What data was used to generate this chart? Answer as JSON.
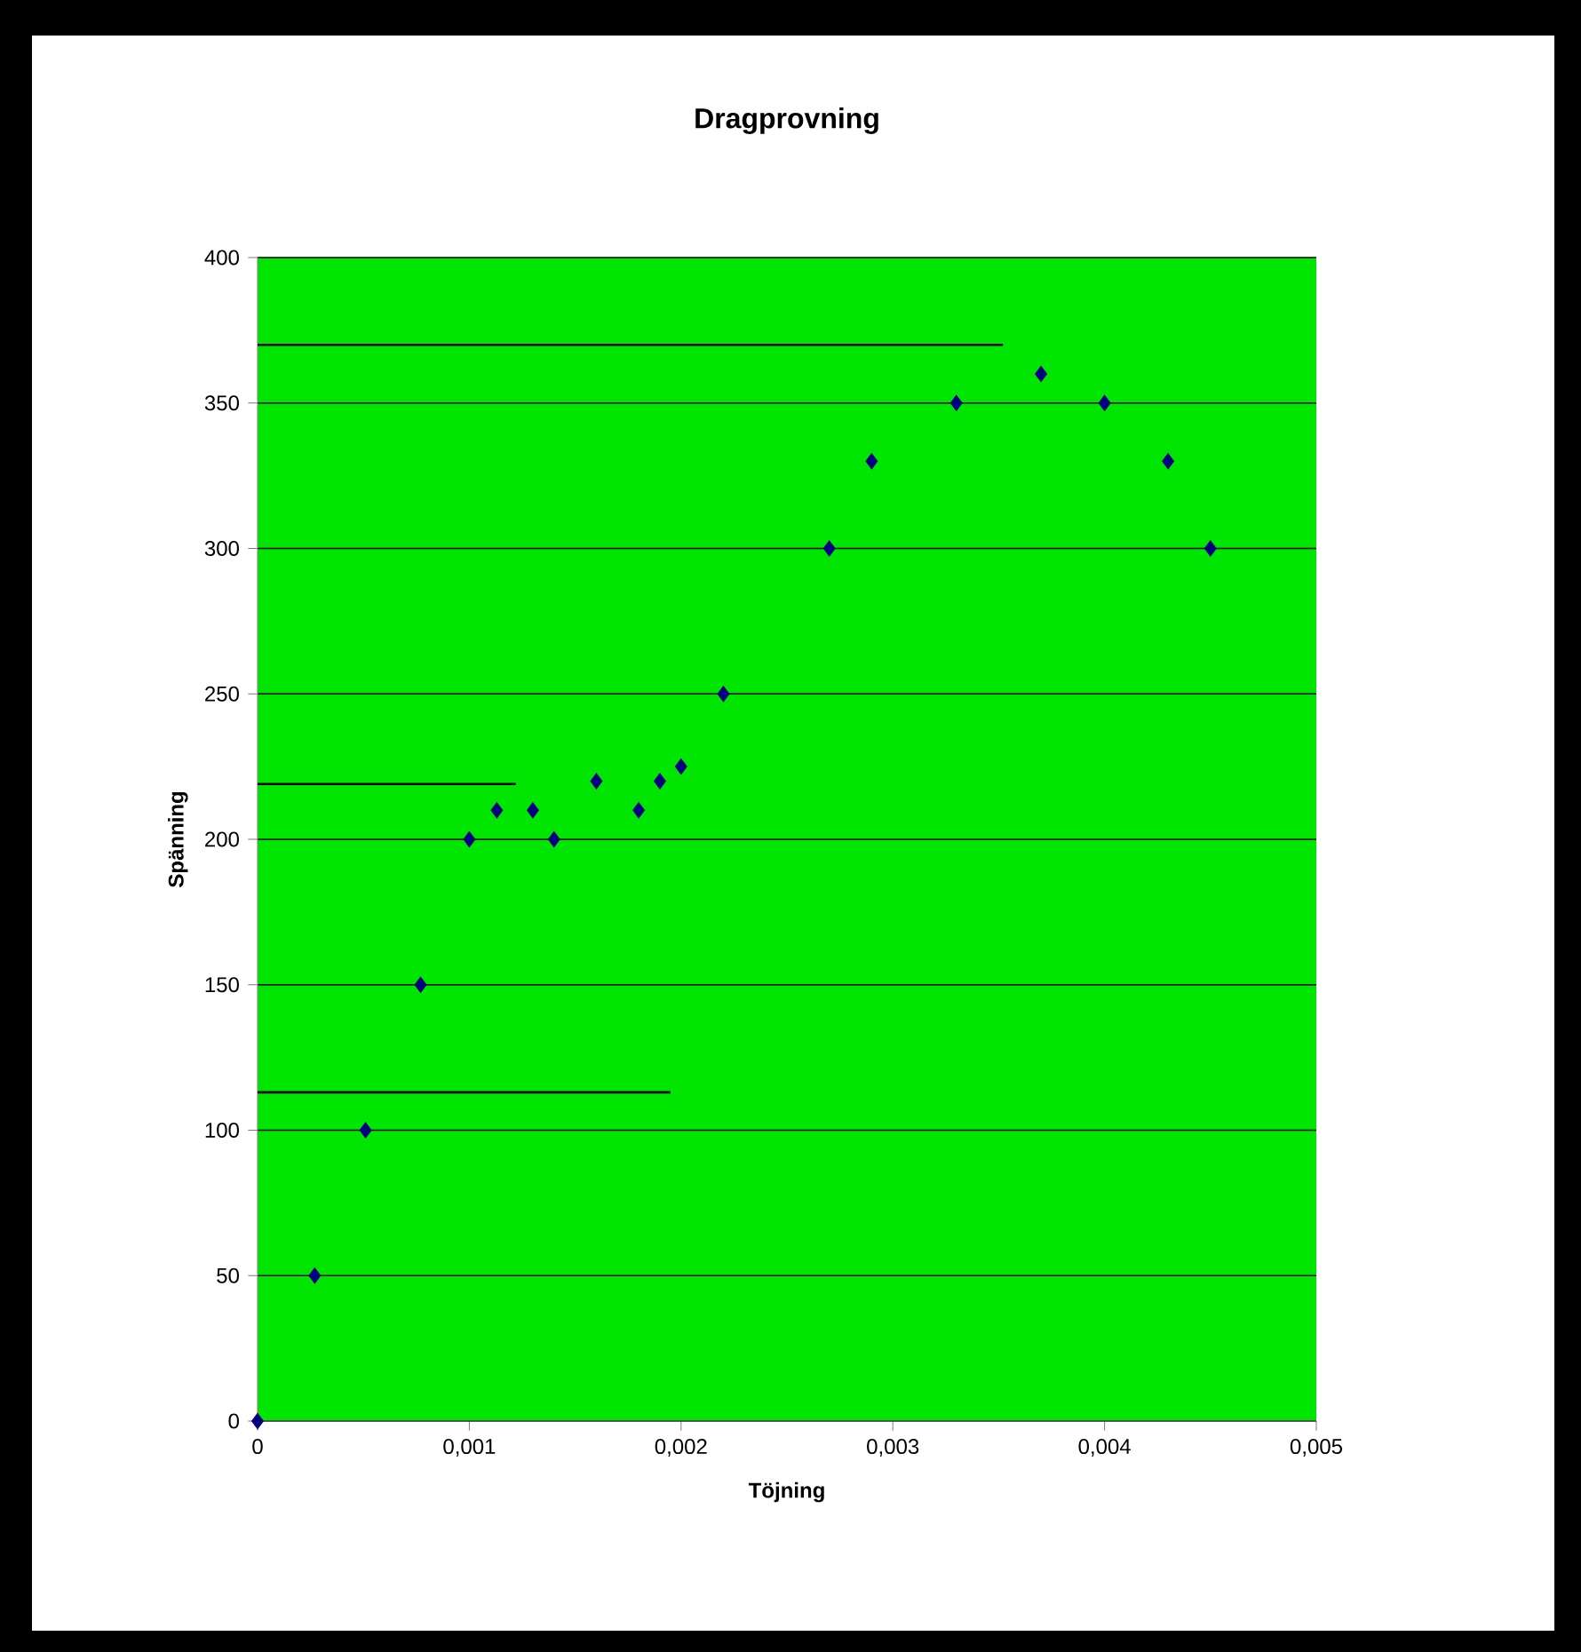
{
  "chart_data": {
    "type": "scatter",
    "title": "Dragprovning",
    "xlabel": "Töjning",
    "ylabel": "Spänning",
    "xlim": [
      0,
      0.005
    ],
    "ylim": [
      0,
      400
    ],
    "xticks": [
      0,
      {
        "value": 0.001,
        "label": "0,001"
      },
      {
        "value": 0.002,
        "label": "0,002"
      },
      {
        "value": 0.003,
        "label": "0,003"
      },
      {
        "value": 0.004,
        "label": "0,004"
      },
      {
        "value": 0.005,
        "label": "0,005"
      }
    ],
    "yticks": [
      0,
      50,
      100,
      150,
      200,
      250,
      300,
      350,
      400
    ],
    "grid": "y",
    "marker": "diamond",
    "series": [
      {
        "color": "#000080",
        "x": [
          0,
          0.00027,
          0.00051,
          0.00077,
          0.001,
          0.00113,
          0.0013,
          0.0014,
          0.0016,
          0.0018,
          0.0019,
          0.002,
          0.0022,
          0.0027,
          0.0029,
          0.0033,
          0.0037,
          0.004,
          0.0043,
          0.0045
        ],
        "values": [
          0,
          50,
          100,
          150,
          200,
          210,
          210,
          200,
          220,
          210,
          220,
          225,
          250,
          300,
          330,
          350,
          360,
          350,
          330,
          300
        ]
      },
      {
        "type": "line",
        "marker": "none",
        "color": "#000000",
        "x": [
          0,
          0.00352
        ],
        "values": [
          370,
          370
        ]
      },
      {
        "type": "line",
        "marker": "none",
        "color": "#000000",
        "x": [
          0,
          0.00122
        ],
        "values": [
          219,
          219
        ]
      },
      {
        "type": "line",
        "marker": "none",
        "color": "#000000",
        "x": [
          0,
          0.00195
        ],
        "values": [
          113,
          113
        ]
      }
    ]
  }
}
